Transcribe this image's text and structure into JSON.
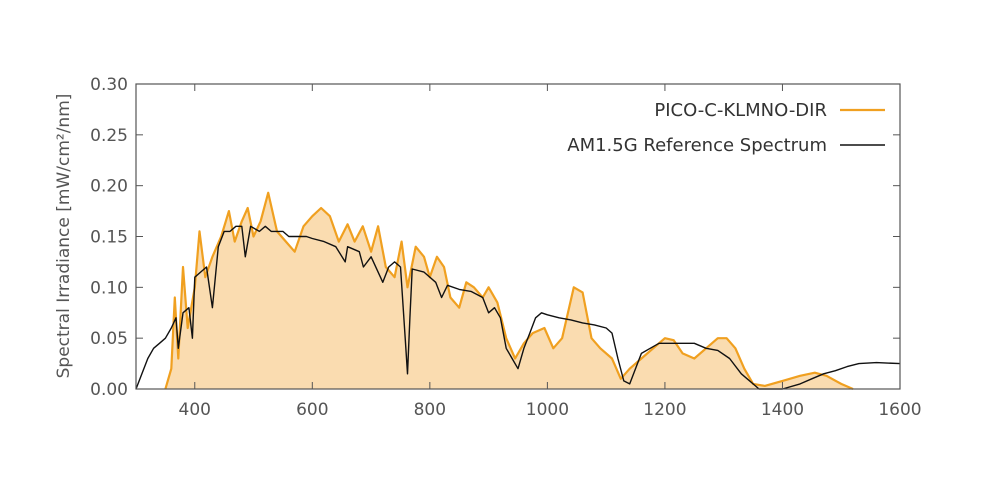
{
  "chart_data": {
    "type": "line",
    "ylabel": "Spectral Irradiance [mW/cm²/nm]",
    "xlabel": "",
    "xlim": [
      300,
      1600
    ],
    "ylim": [
      0,
      0.3
    ],
    "x_ticks": [
      "400",
      "600",
      "800",
      "1000",
      "1200",
      "1400",
      "1600"
    ],
    "y_ticks": [
      "0.00",
      "0.05",
      "0.10",
      "0.15",
      "0.20",
      "0.25",
      "0.30"
    ],
    "grid": false,
    "legend_position": "top-right",
    "series": [
      {
        "name": "PICO-C-KLMNO-DIR",
        "color": "#f0a020",
        "fill": "#fadcb0",
        "points": [
          [
            350,
            0.0
          ],
          [
            360,
            0.02
          ],
          [
            366,
            0.09
          ],
          [
            372,
            0.03
          ],
          [
            380,
            0.12
          ],
          [
            388,
            0.06
          ],
          [
            400,
            0.1
          ],
          [
            408,
            0.155
          ],
          [
            418,
            0.11
          ],
          [
            430,
            0.13
          ],
          [
            445,
            0.15
          ],
          [
            458,
            0.175
          ],
          [
            468,
            0.145
          ],
          [
            480,
            0.165
          ],
          [
            490,
            0.178
          ],
          [
            500,
            0.15
          ],
          [
            512,
            0.165
          ],
          [
            525,
            0.193
          ],
          [
            540,
            0.155
          ],
          [
            555,
            0.145
          ],
          [
            570,
            0.135
          ],
          [
            585,
            0.16
          ],
          [
            600,
            0.17
          ],
          [
            615,
            0.178
          ],
          [
            630,
            0.17
          ],
          [
            645,
            0.145
          ],
          [
            660,
            0.162
          ],
          [
            672,
            0.145
          ],
          [
            686,
            0.16
          ],
          [
            700,
            0.135
          ],
          [
            712,
            0.16
          ],
          [
            725,
            0.12
          ],
          [
            740,
            0.11
          ],
          [
            752,
            0.145
          ],
          [
            762,
            0.1
          ],
          [
            776,
            0.14
          ],
          [
            790,
            0.13
          ],
          [
            800,
            0.11
          ],
          [
            812,
            0.13
          ],
          [
            824,
            0.12
          ],
          [
            835,
            0.09
          ],
          [
            850,
            0.08
          ],
          [
            862,
            0.105
          ],
          [
            875,
            0.1
          ],
          [
            890,
            0.09
          ],
          [
            900,
            0.1
          ],
          [
            915,
            0.085
          ],
          [
            930,
            0.05
          ],
          [
            945,
            0.03
          ],
          [
            960,
            0.045
          ],
          [
            975,
            0.055
          ],
          [
            995,
            0.06
          ],
          [
            1010,
            0.04
          ],
          [
            1025,
            0.05
          ],
          [
            1045,
            0.1
          ],
          [
            1060,
            0.095
          ],
          [
            1075,
            0.05
          ],
          [
            1090,
            0.04
          ],
          [
            1110,
            0.03
          ],
          [
            1125,
            0.01
          ],
          [
            1140,
            0.02
          ],
          [
            1160,
            0.03
          ],
          [
            1180,
            0.04
          ],
          [
            1200,
            0.05
          ],
          [
            1215,
            0.048
          ],
          [
            1230,
            0.035
          ],
          [
            1250,
            0.03
          ],
          [
            1270,
            0.04
          ],
          [
            1290,
            0.05
          ],
          [
            1305,
            0.05
          ],
          [
            1320,
            0.04
          ],
          [
            1335,
            0.02
          ],
          [
            1350,
            0.005
          ],
          [
            1370,
            0.003
          ],
          [
            1400,
            0.008
          ],
          [
            1430,
            0.013
          ],
          [
            1455,
            0.016
          ],
          [
            1475,
            0.013
          ],
          [
            1500,
            0.005
          ],
          [
            1520,
            0.0
          ]
        ]
      },
      {
        "name": "AM1.5G Reference Spectrum",
        "color": "#111111",
        "points": [
          [
            300,
            0.0
          ],
          [
            310,
            0.015
          ],
          [
            320,
            0.03
          ],
          [
            330,
            0.04
          ],
          [
            340,
            0.045
          ],
          [
            350,
            0.05
          ],
          [
            360,
            0.06
          ],
          [
            368,
            0.07
          ],
          [
            372,
            0.04
          ],
          [
            380,
            0.075
          ],
          [
            390,
            0.08
          ],
          [
            396,
            0.05
          ],
          [
            400,
            0.11
          ],
          [
            410,
            0.115
          ],
          [
            420,
            0.12
          ],
          [
            430,
            0.08
          ],
          [
            440,
            0.14
          ],
          [
            450,
            0.155
          ],
          [
            460,
            0.155
          ],
          [
            470,
            0.16
          ],
          [
            480,
            0.16
          ],
          [
            486,
            0.13
          ],
          [
            495,
            0.16
          ],
          [
            510,
            0.155
          ],
          [
            520,
            0.16
          ],
          [
            530,
            0.155
          ],
          [
            540,
            0.155
          ],
          [
            550,
            0.155
          ],
          [
            560,
            0.15
          ],
          [
            570,
            0.15
          ],
          [
            580,
            0.15
          ],
          [
            590,
            0.15
          ],
          [
            600,
            0.148
          ],
          [
            620,
            0.145
          ],
          [
            640,
            0.14
          ],
          [
            656,
            0.125
          ],
          [
            660,
            0.14
          ],
          [
            680,
            0.135
          ],
          [
            687,
            0.12
          ],
          [
            700,
            0.13
          ],
          [
            720,
            0.105
          ],
          [
            730,
            0.12
          ],
          [
            740,
            0.125
          ],
          [
            750,
            0.12
          ],
          [
            758,
            0.05
          ],
          [
            762,
            0.015
          ],
          [
            766,
            0.07
          ],
          [
            770,
            0.118
          ],
          [
            790,
            0.115
          ],
          [
            810,
            0.105
          ],
          [
            820,
            0.09
          ],
          [
            830,
            0.102
          ],
          [
            850,
            0.098
          ],
          [
            870,
            0.096
          ],
          [
            890,
            0.09
          ],
          [
            900,
            0.075
          ],
          [
            910,
            0.08
          ],
          [
            920,
            0.07
          ],
          [
            930,
            0.04
          ],
          [
            940,
            0.03
          ],
          [
            950,
            0.02
          ],
          [
            960,
            0.04
          ],
          [
            970,
            0.055
          ],
          [
            980,
            0.07
          ],
          [
            990,
            0.075
          ],
          [
            1000,
            0.073
          ],
          [
            1020,
            0.07
          ],
          [
            1040,
            0.068
          ],
          [
            1060,
            0.065
          ],
          [
            1080,
            0.063
          ],
          [
            1100,
            0.06
          ],
          [
            1110,
            0.055
          ],
          [
            1120,
            0.03
          ],
          [
            1130,
            0.008
          ],
          [
            1140,
            0.005
          ],
          [
            1150,
            0.02
          ],
          [
            1160,
            0.035
          ],
          [
            1175,
            0.04
          ],
          [
            1190,
            0.045
          ],
          [
            1210,
            0.045
          ],
          [
            1230,
            0.045
          ],
          [
            1250,
            0.045
          ],
          [
            1270,
            0.04
          ],
          [
            1290,
            0.038
          ],
          [
            1310,
            0.03
          ],
          [
            1330,
            0.015
          ],
          [
            1350,
            0.005
          ],
          [
            1360,
            0.0
          ],
          [
            1400,
            0.0
          ],
          [
            1430,
            0.005
          ],
          [
            1450,
            0.01
          ],
          [
            1470,
            0.015
          ],
          [
            1490,
            0.018
          ],
          [
            1510,
            0.022
          ],
          [
            1530,
            0.025
          ],
          [
            1560,
            0.026
          ],
          [
            1600,
            0.025
          ]
        ]
      }
    ]
  }
}
